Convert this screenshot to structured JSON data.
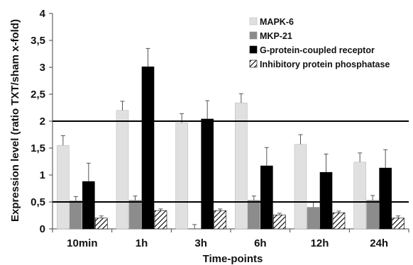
{
  "chart_data": {
    "type": "bar",
    "categories": [
      "10min",
      "1h",
      "3h",
      "6h",
      "12h",
      "24h"
    ],
    "series": [
      {
        "name": "MAPK-6",
        "values": [
          1.55,
          2.2,
          1.97,
          2.34,
          1.57,
          1.24
        ],
        "errors": [
          0.18,
          0.17,
          0.17,
          0.17,
          0.18,
          0.17
        ],
        "color": "#e0e0e0"
      },
      {
        "name": "MKP-21",
        "values": [
          0.52,
          0.53,
          0.0,
          0.53,
          0.4,
          0.53
        ],
        "errors": [
          0.08,
          0.08,
          0.08,
          0.08,
          0.1,
          0.09
        ],
        "color": "#8c8c8c"
      },
      {
        "name": "G-protein-coupled receptor",
        "values": [
          0.88,
          3.01,
          2.04,
          1.17,
          1.05,
          1.13
        ],
        "errors": [
          0.34,
          0.34,
          0.34,
          0.34,
          0.34,
          0.34
        ],
        "color": "#000000"
      },
      {
        "name": "Inhibitory protein phosphatase",
        "values": [
          0.2,
          0.34,
          0.34,
          0.26,
          0.3,
          0.2
        ],
        "errors": [
          0.04,
          0.03,
          0.03,
          0.03,
          0.03,
          0.04
        ],
        "color": "hatched"
      }
    ],
    "reference_lines": [
      2,
      0.5
    ],
    "xlabel": "Time-points",
    "ylabel": "Expression level (ratio TXT/sham x-fold)",
    "ylim": [
      0,
      4
    ],
    "yticks": [
      "0",
      "0,5",
      "1",
      "1,5",
      "2",
      "2,5",
      "3",
      "3,5",
      "4"
    ],
    "grid": false,
    "legend_position": "top-right"
  }
}
